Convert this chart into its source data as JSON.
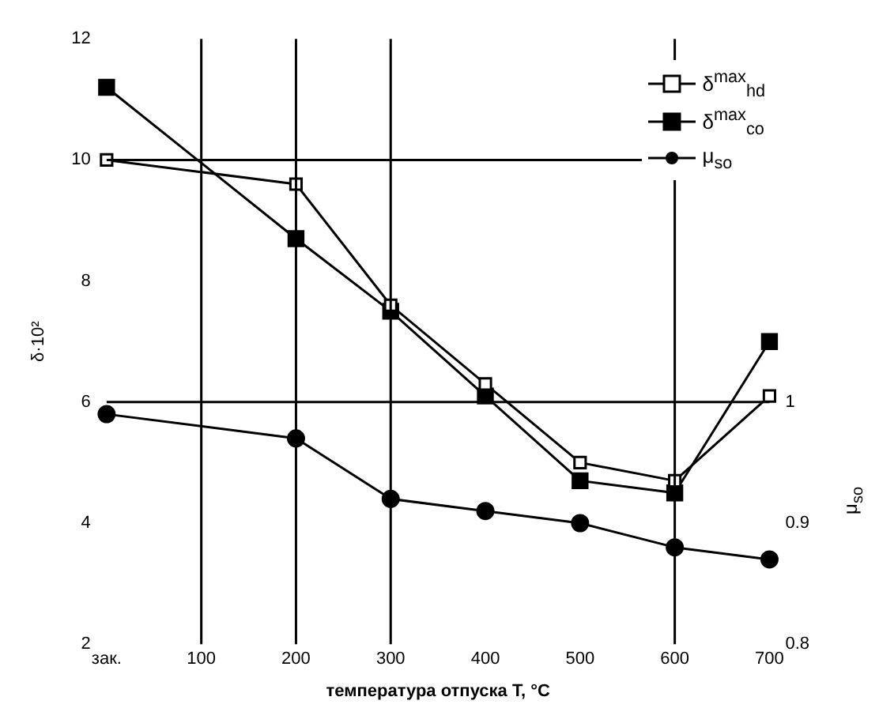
{
  "chart_data": {
    "type": "line",
    "xlabel": "температура отпуска T, °C",
    "ylabel": "δ·10²",
    "y2label": "μ$_{so}$",
    "categories": [
      "зак.",
      "100",
      "200",
      "300",
      "400",
      "500",
      "600",
      "700"
    ],
    "series": [
      {
        "name": "δ$^{max}$$_{hd}$",
        "color": "#000000",
        "marker": "square",
        "values": [
          10.0,
          null,
          9.6,
          7.6,
          6.3,
          5.0,
          4.7,
          6.1
        ]
      },
      {
        "name": "δ$^{max}$$_{co}$",
        "color": "#000000",
        "marker": "square",
        "values": [
          11.2,
          null,
          8.7,
          7.5,
          6.1,
          4.7,
          4.5,
          7.0
        ]
      },
      {
        "name": "μ$_{so}$",
        "color": "#000000",
        "marker": "circle",
        "axis": "y2",
        "values": [
          0.99,
          null,
          0.97,
          0.92,
          0.91,
          0.9,
          0.88,
          0.87
        ]
      }
    ],
    "ylim": [
      2,
      12
    ],
    "yticks": [
      2,
      4,
      6,
      8,
      10,
      12
    ],
    "y2lim": [
      0.8,
      1.3
    ],
    "y2ticks": [
      0.8,
      0.9,
      1
    ],
    "grid": false,
    "legend": "top right",
    "line_style": "solid",
    "ref_lines": [
      {
        "axis": "x",
        "value": "100"
      },
      {
        "axis": "x",
        "value": "200"
      },
      {
        "axis": "x",
        "value": "300"
      },
      {
        "axis": "x",
        "value": "600"
      },
      {
        "axis": "y",
        "value": 10
      },
      {
        "axis": "y",
        "value": 6
      }
    ]
  }
}
